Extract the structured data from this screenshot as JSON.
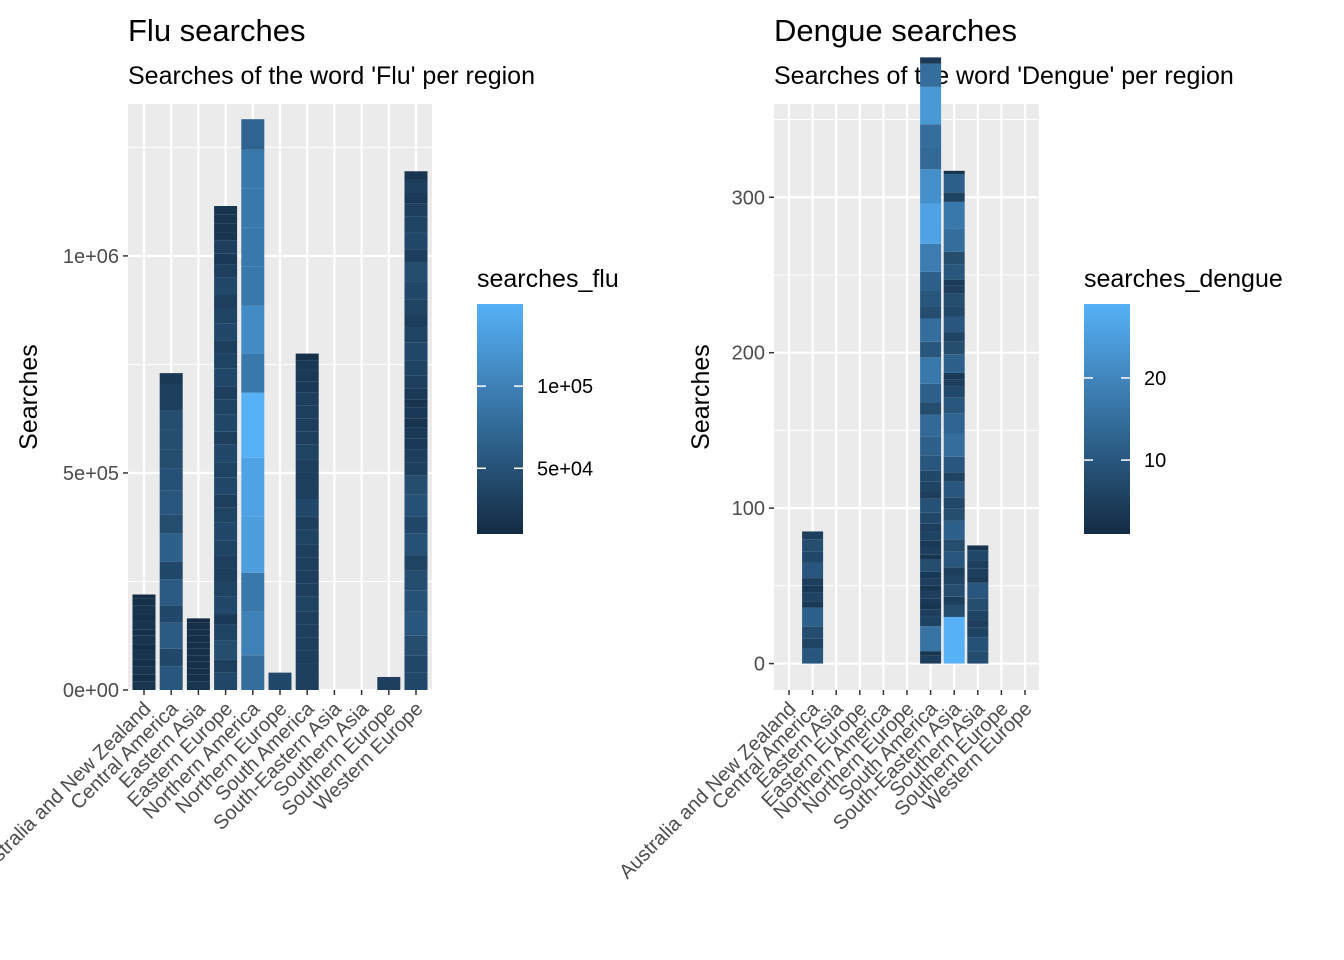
{
  "chart_data": [
    {
      "type": "bar",
      "stacked": true,
      "title": "Flu searches",
      "subtitle": "Searches of the word 'Flu' per region",
      "xlabel": "",
      "ylabel": "Searches",
      "ylim": [
        0,
        1350000
      ],
      "yticks": [
        0,
        500000,
        1000000
      ],
      "ytick_labels": [
        "0e+00",
        "5e+05",
        "1e+06"
      ],
      "grid": true,
      "legend": {
        "title": "searches_flu",
        "position": "right",
        "range": [
          10000,
          150000
        ],
        "breaks": [
          50000,
          100000
        ],
        "break_labels": [
          "5e+04",
          "1e+05"
        ],
        "colors": [
          "#132B43",
          "#56B1F7"
        ]
      },
      "categories": [
        "Australia and New Zealand",
        "Central America",
        "Eastern Asia",
        "Eastern Europe",
        "Northern America",
        "Northern Europe",
        "South America",
        "South-Eastern Asia",
        "Southern Asia",
        "Southern Europe",
        "Western Europe"
      ],
      "stacks": [
        [
          20000,
          15000,
          20000,
          15000,
          20000,
          15000,
          20000,
          15000,
          20000,
          15000,
          20000,
          15000,
          10000
        ],
        [
          55000,
          40000,
          60000,
          40000,
          60000,
          40000,
          65000,
          45000,
          55000,
          50000,
          45000,
          45000,
          45000,
          30000,
          30000,
          25000
        ],
        [
          20000,
          15000,
          15000,
          15000,
          15000,
          15000,
          15000,
          15000,
          15000,
          15000,
          10000
        ],
        [
          40000,
          30000,
          45000,
          35000,
          25000,
          40000,
          35000,
          30000,
          30000,
          35000,
          40000,
          35000,
          30000,
          40000,
          35000,
          40000,
          30000,
          40000,
          35000,
          30000,
          40000,
          35000,
          30000,
          40000,
          35000,
          30000,
          40000,
          30000,
          25000,
          30000,
          20000,
          20000,
          20000,
          20000
        ],
        [
          80000,
          100000,
          90000,
          130000,
          135000,
          150000,
          90000,
          110000,
          90000,
          90000,
          90000,
          90000,
          70000
        ],
        [
          40000
        ],
        [
          30000,
          30000,
          30000,
          30000,
          30000,
          30000,
          35000,
          30000,
          30000,
          30000,
          30000,
          35000,
          30000,
          40000,
          30000,
          30000,
          30000,
          35000,
          30000,
          30000,
          30000,
          30000,
          25000,
          25000,
          25000,
          15000
        ],
        [],
        [],
        [
          30000
        ],
        [
          40000,
          40000,
          45000,
          55000,
          50000,
          45000,
          35000,
          50000,
          40000,
          50000,
          45000,
          30000,
          30000,
          25000,
          25000,
          20000,
          25000,
          20000,
          25000,
          30000,
          35000,
          40000,
          35000,
          30000,
          35000,
          40000,
          45000,
          30000,
          40000,
          35000,
          30000,
          25000,
          30000,
          20000
        ]
      ]
    },
    {
      "type": "bar",
      "stacked": true,
      "title": "Dengue searches",
      "subtitle": "Searches of the word 'Dengue' per region",
      "xlabel": "",
      "ylabel": "Searches",
      "ylim": [
        -17,
        360
      ],
      "yticks": [
        0,
        100,
        200,
        300
      ],
      "ytick_labels": [
        "0",
        "100",
        "200",
        "300"
      ],
      "grid": true,
      "legend": {
        "title": "searches_dengue",
        "position": "right",
        "range": [
          1,
          29
        ],
        "breaks": [
          10,
          20
        ],
        "break_labels": [
          "10",
          "20"
        ],
        "colors": [
          "#132B43",
          "#56B1F7"
        ]
      },
      "categories": [
        "Australia and New Zealand",
        "Central America",
        "Eastern Asia",
        "Eastern Europe",
        "Northern America",
        "Northern Europe",
        "South America",
        "South-Eastern Asia",
        "Southern Asia",
        "Southern Europe",
        "Western Europe"
      ],
      "stacks": [
        [],
        [
          10,
          6,
          8,
          12,
          4,
          6,
          4,
          5,
          10,
          7,
          8,
          5
        ],
        [],
        [],
        [],
        [],
        [
          5,
          3,
          16,
          6,
          5,
          3,
          4,
          5,
          3,
          5,
          4,
          8,
          3,
          5,
          4,
          6,
          5,
          7,
          9,
          5,
          6,
          7,
          10,
          12,
          14,
          8,
          12,
          17,
          10,
          15,
          8,
          10,
          12,
          18,
          26,
          22,
          14,
          15,
          24,
          15,
          4
        ],
        [
          30,
          8,
          5,
          8,
          6,
          5,
          10,
          8,
          12,
          8,
          7,
          10,
          6,
          10,
          15,
          13,
          10,
          7,
          5,
          4,
          12,
          8,
          6,
          10,
          7,
          8,
          5,
          4,
          10,
          8,
          15,
          17,
          6,
          12,
          2
        ],
        [
          8,
          9,
          6,
          5,
          6,
          8,
          10,
          4,
          5,
          5,
          7,
          3
        ],
        [],
        []
      ]
    }
  ]
}
